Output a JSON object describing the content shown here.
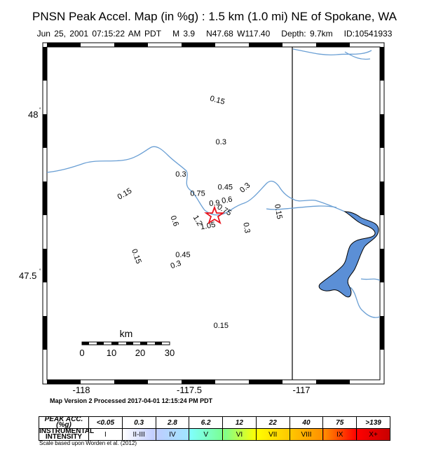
{
  "title": "PNSN Peak Accel. Map (in %g) : 1.5 km (1.0 mi) NE of Spokane, WA",
  "subtitle": {
    "date": "Jun 25, 2001 07:15:22 AM PDT",
    "magnitude": "M 3.9",
    "location": "N47.68 W117.40",
    "depth": "Depth: 9.7km",
    "event_id": "ID:10541933"
  },
  "axes": {
    "lat_ticks": [
      "48",
      "47.5"
    ],
    "lon_ticks": [
      "-118",
      "-117.5",
      "-117"
    ]
  },
  "contour_labels": [
    {
      "text": "0.15",
      "lon": -117.36,
      "lat": 48.03
    },
    {
      "text": "0.3",
      "lon": -117.34,
      "lat": 47.9
    },
    {
      "text": "0.3",
      "lon": -117.53,
      "lat": 47.8
    },
    {
      "text": "0.15",
      "lon": -117.79,
      "lat": 47.74
    },
    {
      "text": "0.3",
      "lon": -117.22,
      "lat": 47.76
    },
    {
      "text": "0.45",
      "lon": -117.32,
      "lat": 47.76
    },
    {
      "text": "0.75",
      "lon": -117.45,
      "lat": 47.74
    },
    {
      "text": "0.6",
      "lon": -117.31,
      "lat": 47.72
    },
    {
      "text": "0.9",
      "lon": -117.37,
      "lat": 47.71
    },
    {
      "text": "0.75",
      "lon": -117.33,
      "lat": 47.69
    },
    {
      "text": "0.15",
      "lon": -117.08,
      "lat": 47.69
    },
    {
      "text": "0.6",
      "lon": -117.57,
      "lat": 47.66
    },
    {
      "text": "1.2",
      "lon": -117.46,
      "lat": 47.66
    },
    {
      "text": "1.05",
      "lon": -117.4,
      "lat": 47.64
    },
    {
      "text": "0.3",
      "lon": -117.23,
      "lat": 47.64
    },
    {
      "text": "0.15",
      "lon": -117.75,
      "lat": 47.55
    },
    {
      "text": "0.45",
      "lon": -117.52,
      "lat": 47.55
    },
    {
      "text": "0.3",
      "lon": -117.55,
      "lat": 47.52
    },
    {
      "text": "0.15",
      "lon": -117.34,
      "lat": 47.33
    }
  ],
  "scale_bar": {
    "title": "km",
    "labels": [
      "0",
      "10",
      "20",
      "30"
    ]
  },
  "version": "Map Version 2 Processed 2017-04-01 12:15:24 PM PDT",
  "legend": {
    "row1_label": "PEAK ACC.(%g)",
    "row2_label": "INSTRUMENTAL INTENSITY",
    "values": [
      "<0.05",
      "0.3",
      "2.8",
      "6.2",
      "12",
      "22",
      "40",
      "75",
      ">139"
    ],
    "intensities": [
      "I",
      "II-III",
      "IV",
      "V",
      "VI",
      "VII",
      "VIII",
      "IX",
      "X+"
    ],
    "colors": [
      "#ffffff",
      "#bfccff",
      "#a0e6ff",
      "#80ffff",
      "#7aff93",
      "#ffff00",
      "#ffc800",
      "#ff9100",
      "#ff0000",
      "#c80000"
    ]
  },
  "scale_note": "Scale based upon Worden et al. (2012)",
  "colors": {
    "river": "#6a9fd4",
    "lake": "#5b8fd6",
    "epicenter": "#e8141e"
  }
}
